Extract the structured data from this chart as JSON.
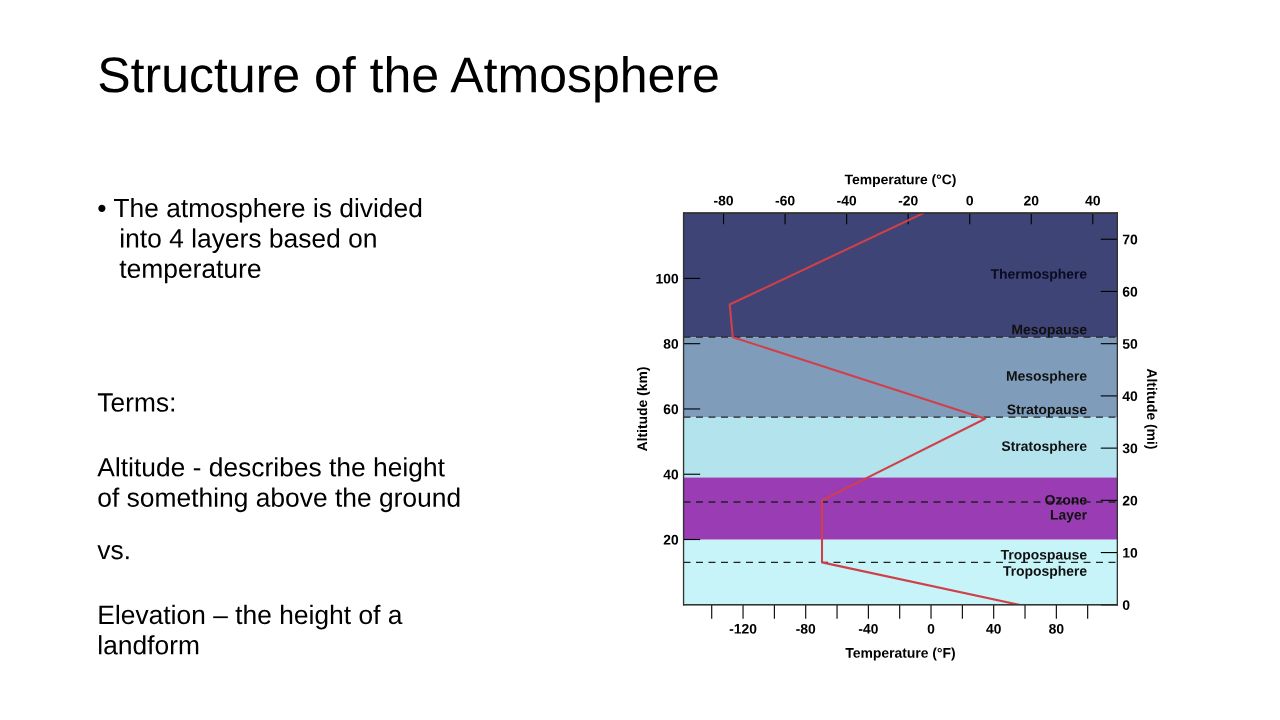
{
  "chart_data": {
    "type": "line",
    "title": "Structure of the Atmosphere",
    "xlabel": "Temperature (°F)",
    "x2label": "Temperature (°C)",
    "ylabel": "Altitude (km)",
    "y2label": "Altitude (mi)",
    "annotations": [
      "• The atmosphere is divided\n   into 4 layers based on\n   temperature",
      "Terms:",
      "Altitude - describes the height\nof something above the ground",
      "vs.",
      "Elevation – the height of a\nlandform"
    ],
    "series": [
      {
        "color": "#d0404a",
        "axis": "x2",
        "x": [
          -15,
          -78,
          -77,
          5,
          -48,
          -48,
          16
        ],
        "values": [
          120,
          92,
          82,
          57,
          32,
          13,
          0
        ]
      }
    ],
    "xlim": [
      -158,
      119
    ],
    "xticks": [
      {
        "value": -140,
        "label": null
      },
      -120,
      {
        "value": -100,
        "label": null
      },
      -80,
      {
        "value": -60,
        "label": null
      },
      -40,
      {
        "value": -20,
        "label": null
      },
      0,
      {
        "value": 20,
        "label": null
      },
      40,
      {
        "value": 60,
        "label": null
      },
      80,
      {
        "value": 100,
        "label": null
      }
    ],
    "x2lim": [
      -93,
      48
    ],
    "x2ticks": [
      -80,
      -60,
      -40,
      -20,
      0,
      20,
      40
    ],
    "ylim": [
      0,
      120
    ],
    "yticks": [
      20,
      40,
      60,
      80,
      100
    ],
    "y2lim": [
      0,
      75
    ],
    "y2ticks": [
      0,
      10,
      20,
      30,
      40,
      50,
      60,
      70
    ],
    "bands": [
      {
        "axis": "y",
        "from": 82,
        "to": 120,
        "label": "Thermosphere",
        "color": "#3e4475"
      },
      {
        "axis": "y",
        "from": 57.5,
        "to": 82,
        "label": "Mesosphere",
        "color": "#7f9dbb"
      },
      {
        "axis": "y",
        "from": 39,
        "to": 57.5,
        "label": "Stratosphere",
        "color": "#b3e3ec"
      },
      {
        "axis": "y",
        "from": 0,
        "to": 20,
        "label": "Troposphere",
        "color": "#c6f4f8"
      },
      {
        "axis": "y",
        "from": 20,
        "to": 39,
        "label": "Ozone\nLayer",
        "color": "#9a3cb4"
      }
    ],
    "ref_lines": [
      {
        "axis": "y",
        "value": 82,
        "label": "Mesopause",
        "line_style": "dashed",
        "color": "#222222"
      },
      {
        "axis": "y",
        "value": 57.5,
        "label": "Stratopause",
        "line_style": "dashed",
        "color": "#222222"
      },
      {
        "axis": "y",
        "value": 31.5,
        "label": null,
        "line_style": "dashed",
        "color": "#222222"
      },
      {
        "axis": "y",
        "value": 13,
        "label": "Tropospause",
        "line_style": "dashed",
        "color": "#222222"
      }
    ],
    "grid": false,
    "legend": false,
    "marker": "none",
    "line_style": "solid"
  }
}
